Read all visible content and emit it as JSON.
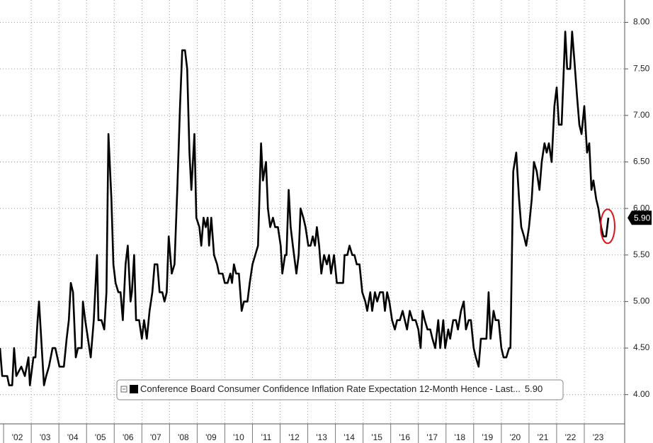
{
  "chart_data": {
    "type": "line",
    "series": [
      {
        "name": "Conference Board Consumer Confidence Inflation Rate Expectation 12-Month Hence - Last...",
        "color": "#000000",
        "x": [
          2001.87,
          2001.95,
          2002.13,
          2002.2,
          2002.31,
          2002.38,
          2002.46,
          2002.64,
          2002.77,
          2002.9,
          2002.95,
          2003.08,
          2003.15,
          2003.23,
          2003.28,
          2003.36,
          2003.46,
          2003.54,
          2003.64,
          2003.77,
          2003.87,
          2004.02,
          2004.18,
          2004.28,
          2004.36,
          2004.43,
          2004.51,
          2004.61,
          2004.69,
          2004.82,
          2004.87,
          2004.95,
          2005.05,
          2005.15,
          2005.26,
          2005.38,
          2005.43,
          2005.54,
          2005.64,
          2005.72,
          2005.79,
          2005.9,
          2005.97,
          2006.05,
          2006.15,
          2006.23,
          2006.31,
          2006.41,
          2006.49,
          2006.59,
          2006.64,
          2006.72,
          2006.79,
          2006.9,
          2007.0,
          2007.08,
          2007.18,
          2007.28,
          2007.38,
          2007.46,
          2007.56,
          2007.64,
          2007.74,
          2007.82,
          2007.9,
          2007.97,
          2008.08,
          2008.18,
          2008.28,
          2008.38,
          2008.46,
          2008.56,
          2008.64,
          2008.72,
          2008.79,
          2008.9,
          2008.97,
          2009.08,
          2009.15,
          2009.23,
          2009.31,
          2009.38,
          2009.43,
          2009.51,
          2009.61,
          2009.72,
          2009.79,
          2009.92,
          2010.0,
          2010.1,
          2010.2,
          2010.26,
          2010.33,
          2010.41,
          2010.51,
          2010.61,
          2010.69,
          2010.82,
          2010.9,
          2011.0,
          2011.1,
          2011.2,
          2011.31,
          2011.38,
          2011.49,
          2011.56,
          2011.64,
          2011.74,
          2011.82,
          2011.92,
          2012.02,
          2012.08,
          2012.18,
          2012.23,
          2012.31,
          2012.38,
          2012.46,
          2012.59,
          2012.67,
          2012.74,
          2012.84,
          2012.92,
          2013.02,
          2013.1,
          2013.18,
          2013.26,
          2013.33,
          2013.41,
          2013.49,
          2013.59,
          2013.69,
          2013.77,
          2013.84,
          2013.95,
          2014.05,
          2014.18,
          2014.28,
          2014.33,
          2014.43,
          2014.51,
          2014.61,
          2014.69,
          2014.77,
          2014.87,
          2014.97,
          2015.08,
          2015.15,
          2015.26,
          2015.33,
          2015.43,
          2015.51,
          2015.61,
          2015.72,
          2015.79,
          2015.87,
          2015.95,
          2016.05,
          2016.15,
          2016.23,
          2016.33,
          2016.43,
          2016.51,
          2016.59,
          2016.69,
          2016.79,
          2016.9,
          2017.0,
          2017.08,
          2017.15,
          2017.23,
          2017.33,
          2017.43,
          2017.51,
          2017.61,
          2017.72,
          2017.79,
          2017.9,
          2017.97,
          2018.08,
          2018.15,
          2018.26,
          2018.36,
          2018.43,
          2018.54,
          2018.64,
          2018.72,
          2018.82,
          2018.9,
          2019.0,
          2019.08,
          2019.18,
          2019.26,
          2019.36,
          2019.46,
          2019.54,
          2019.61,
          2019.72,
          2019.79,
          2019.9,
          2020.0,
          2020.08,
          2020.18,
          2020.28,
          2020.33,
          2020.43,
          2020.54,
          2020.64,
          2020.72,
          2020.82,
          2020.9,
          2021.0,
          2021.1,
          2021.18,
          2021.28,
          2021.38,
          2021.46,
          2021.56,
          2021.64,
          2021.72,
          2021.82,
          2021.92,
          2022.0,
          2022.08,
          2022.18,
          2022.31,
          2022.38,
          2022.49,
          2022.56,
          2022.64,
          2022.74,
          2022.82,
          2022.9,
          2023.0,
          2023.1,
          2023.18,
          2023.26,
          2023.33,
          2023.43,
          2023.51,
          2023.61,
          2023.69,
          2023.79,
          2023.87
        ],
        "values": [
          4.5,
          4.2,
          4.2,
          4.1,
          4.1,
          4.5,
          4.2,
          4.3,
          4.2,
          4.4,
          4.1,
          4.4,
          4.4,
          4.8,
          5.0,
          4.6,
          4.1,
          4.2,
          4.3,
          4.5,
          4.5,
          4.3,
          4.3,
          4.6,
          4.8,
          5.2,
          5.1,
          4.4,
          4.5,
          4.5,
          5.0,
          4.8,
          4.6,
          4.4,
          4.8,
          5.5,
          4.8,
          4.8,
          4.7,
          5.1,
          6.8,
          6.1,
          5.4,
          5.2,
          5.1,
          5.1,
          4.8,
          5.4,
          5.6,
          5.0,
          5.1,
          5.5,
          4.8,
          4.8,
          4.6,
          4.8,
          4.6,
          4.9,
          5.1,
          5.4,
          5.4,
          5.1,
          5.1,
          5.0,
          5.1,
          5.7,
          5.3,
          5.4,
          6.2,
          7.1,
          7.7,
          7.7,
          7.5,
          6.6,
          6.2,
          6.8,
          5.9,
          5.8,
          5.6,
          5.9,
          5.8,
          5.9,
          5.6,
          5.9,
          5.5,
          5.4,
          5.3,
          5.3,
          5.2,
          5.2,
          5.3,
          5.2,
          5.4,
          5.3,
          5.3,
          4.9,
          5.0,
          5.0,
          5.2,
          5.4,
          5.5,
          5.6,
          6.7,
          6.3,
          6.5,
          6.0,
          5.8,
          5.9,
          5.8,
          5.8,
          5.6,
          5.3,
          5.5,
          5.5,
          6.2,
          5.8,
          5.6,
          5.3,
          5.5,
          6.0,
          5.9,
          5.8,
          5.6,
          5.6,
          5.7,
          5.6,
          5.8,
          5.6,
          5.3,
          5.5,
          5.4,
          5.5,
          5.3,
          5.5,
          5.2,
          5.2,
          5.2,
          5.5,
          5.5,
          5.6,
          5.5,
          5.5,
          5.4,
          5.4,
          5.1,
          5.0,
          4.9,
          5.1,
          4.9,
          5.1,
          5.0,
          5.1,
          5.1,
          4.9,
          5.1,
          5.0,
          4.8,
          4.7,
          4.8,
          4.8,
          4.9,
          4.8,
          4.7,
          4.9,
          4.8,
          4.8,
          4.7,
          4.5,
          4.9,
          4.8,
          4.7,
          4.7,
          4.6,
          4.5,
          4.8,
          4.5,
          4.8,
          4.5,
          4.7,
          4.6,
          4.8,
          4.8,
          4.7,
          4.9,
          5.0,
          4.7,
          4.8,
          4.8,
          4.5,
          4.4,
          4.3,
          4.6,
          4.6,
          4.6,
          5.1,
          4.6,
          4.9,
          4.8,
          4.8,
          4.5,
          4.4,
          4.4,
          4.5,
          4.5,
          6.4,
          6.6,
          6.1,
          5.8,
          5.7,
          5.6,
          5.8,
          6.1,
          6.5,
          6.4,
          6.2,
          6.5,
          6.7,
          6.6,
          6.7,
          6.5,
          7.1,
          7.3,
          6.9,
          6.9,
          7.9,
          7.5,
          7.5,
          7.9,
          7.6,
          7.2,
          6.9,
          6.8,
          7.1,
          6.6,
          6.7,
          6.2,
          6.3,
          6.1,
          6.0,
          5.8,
          5.7,
          5.7,
          5.9
        ],
        "last_value_label": "5.90"
      }
    ],
    "xlim": [
      2001.87,
      2024.46
    ],
    "xticks": [
      {
        "value": 2002,
        "label": "'02"
      },
      {
        "value": 2003,
        "label": "'03"
      },
      {
        "value": 2004,
        "label": "'04"
      },
      {
        "value": 2005,
        "label": "'05"
      },
      {
        "value": 2006,
        "label": "'06"
      },
      {
        "value": 2007,
        "label": "'07"
      },
      {
        "value": 2008,
        "label": "'08"
      },
      {
        "value": 2009,
        "label": "'09"
      },
      {
        "value": 2010,
        "label": "'10"
      },
      {
        "value": 2011,
        "label": "'11"
      },
      {
        "value": 2012,
        "label": "'12"
      },
      {
        "value": 2013,
        "label": "'13"
      },
      {
        "value": 2014,
        "label": "'14"
      },
      {
        "value": 2015,
        "label": "'15"
      },
      {
        "value": 2016,
        "label": "'16"
      },
      {
        "value": 2017,
        "label": "'17"
      },
      {
        "value": 2018,
        "label": "'18"
      },
      {
        "value": 2019,
        "label": "'19"
      },
      {
        "value": 2020,
        "label": "'20"
      },
      {
        "value": 2021,
        "label": "'21"
      },
      {
        "value": 2022,
        "label": "'22"
      },
      {
        "value": 2023,
        "label": "'23"
      }
    ],
    "ylim": [
      3.48,
      8.24
    ],
    "yticks": [
      {
        "value": 4,
        "label": "4.00"
      },
      {
        "value": 4.5,
        "label": "4.50"
      },
      {
        "value": 5,
        "label": "5.00"
      },
      {
        "value": 5.5,
        "label": "5.50"
      },
      {
        "value": 6,
        "label": "6.00"
      },
      {
        "value": 6.5,
        "label": "6.50"
      },
      {
        "value": 7,
        "label": "7.00"
      },
      {
        "value": 7.5,
        "label": "7.50"
      },
      {
        "value": 8,
        "label": "8.00"
      }
    ],
    "grid": true
  }
}
